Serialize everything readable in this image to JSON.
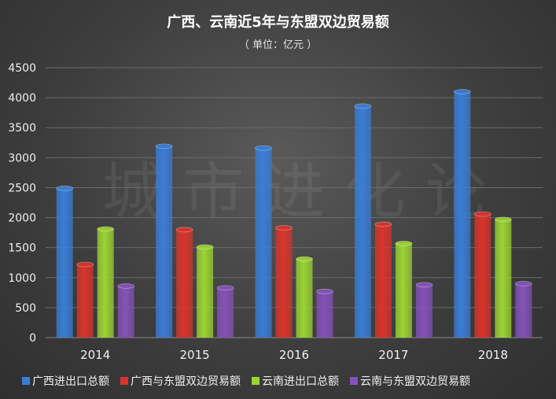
{
  "chart_data": {
    "type": "bar",
    "title": "广西、云南近5年与东盟双边贸易额",
    "subtitle": "（ 单位：亿元 ）",
    "categories": [
      "2014",
      "2015",
      "2016",
      "2017",
      "2018"
    ],
    "ylim": [
      0,
      4500
    ],
    "yticks": [
      0,
      500,
      1000,
      1500,
      2000,
      2500,
      3000,
      3500,
      4000,
      4500
    ],
    "grid": true,
    "legend_position": "bottom",
    "series": [
      {
        "name": "广西进出口总额",
        "color": "#3a7dd6",
        "values": [
          2490,
          3190,
          3160,
          3860,
          4100
        ]
      },
      {
        "name": "广西与东盟双边贸易额",
        "color": "#d9342b",
        "values": [
          1220,
          1800,
          1830,
          1890,
          2060
        ]
      },
      {
        "name": "云南进出口总额",
        "color": "#9bd432",
        "values": [
          1810,
          1510,
          1310,
          1570,
          1970
        ]
      },
      {
        "name": "云南与东盟双边贸易额",
        "color": "#8452b8",
        "values": [
          860,
          830,
          770,
          880,
          900
        ]
      }
    ],
    "watermark": "城 市 进 化 论"
  }
}
